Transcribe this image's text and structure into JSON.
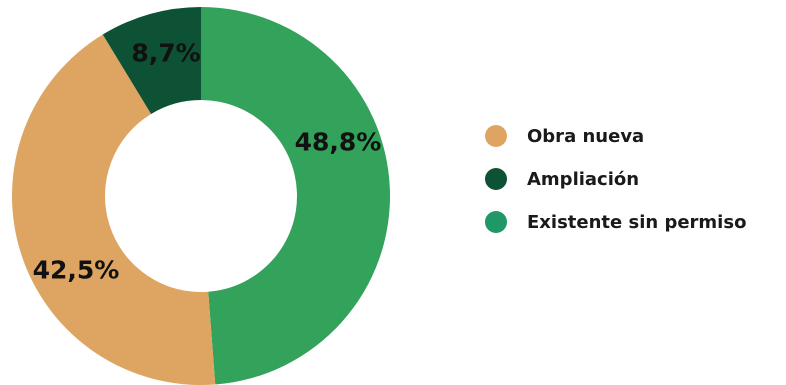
{
  "chart_data": {
    "type": "pie",
    "variant": "donut",
    "categories": [
      "Obra nueva",
      "Ampliación",
      "Existente sin permiso"
    ],
    "values": [
      42.5,
      8.7,
      48.8
    ],
    "data_labels": [
      "42,5%",
      "8,7%",
      "48,8%"
    ],
    "colors": [
      "#dea562",
      "#0d5234",
      "#33a25a"
    ],
    "legend_colors": [
      "#dea562",
      "#0d5234",
      "#1f9766"
    ],
    "legend_position": "right",
    "title": ""
  }
}
